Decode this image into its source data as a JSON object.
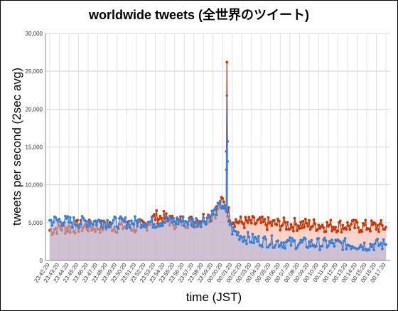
{
  "chart_data": {
    "type": "line",
    "title": "worldwide tweets (全世界のツイート)",
    "xlabel": "time (JST)",
    "ylabel": "tweets per second (2sec avg)",
    "ylim": [
      0,
      30000
    ],
    "yticks": [
      0,
      5000,
      10000,
      15000,
      20000,
      25000,
      30000
    ],
    "ytick_labels": [
      "0",
      "5,000",
      "10,000",
      "15,000",
      "20,000",
      "25,000",
      "30,000"
    ],
    "grid": true,
    "legend": "none",
    "x_categories": [
      "23:42:20",
      "23:43:20",
      "23:44:20",
      "23:45:20",
      "23:46:20",
      "23:47:20",
      "23:48:20",
      "23:49:20",
      "23:50:20",
      "23:51:20",
      "23:52:20",
      "23:53:20",
      "23:54:20",
      "23:55:20",
      "23:56:20",
      "23:57:20",
      "23:58:20",
      "23:59:20",
      "00:00:20",
      "00:01:20",
      "00:02:20",
      "00:03:20",
      "00:04:20",
      "00:05:20",
      "00:06:20",
      "00:07:20",
      "00:08:20",
      "00:09:20",
      "00:10:20",
      "00:11:20",
      "00:12:20",
      "00:13:20",
      "00:14:20",
      "00:15:20",
      "00:16:20",
      "00:17:20"
    ],
    "series": [
      {
        "color": "#cc3300",
        "fill": "#f4b8a6",
        "values": [
          4000,
          4400,
          4300,
          4500,
          4500,
          4400,
          4600,
          4500,
          4500,
          4400,
          4700,
          5800,
          5600,
          5000,
          5200,
          5100,
          5600,
          6000,
          7800,
          5400,
          5000,
          5000,
          4900,
          4800,
          4800,
          4700,
          4800,
          4700,
          4700,
          4600,
          4600,
          4600,
          4500,
          4500,
          4500,
          4400
        ],
        "jitter": 900,
        "spike": 26200
      },
      {
        "color": "#3a7fd5",
        "fill": "#b4b4d6",
        "values": [
          5200,
          5300,
          5100,
          5000,
          5200,
          5100,
          5100,
          5000,
          5000,
          5100,
          5100,
          5000,
          5300,
          5200,
          5200,
          5100,
          5300,
          6200,
          7500,
          4000,
          3200,
          2800,
          2600,
          2500,
          2400,
          2300,
          2300,
          2200,
          2200,
          2200,
          2200,
          2100,
          2100,
          2000,
          2100,
          2100
        ],
        "jitter": 800,
        "spike": 21800
      }
    ]
  }
}
